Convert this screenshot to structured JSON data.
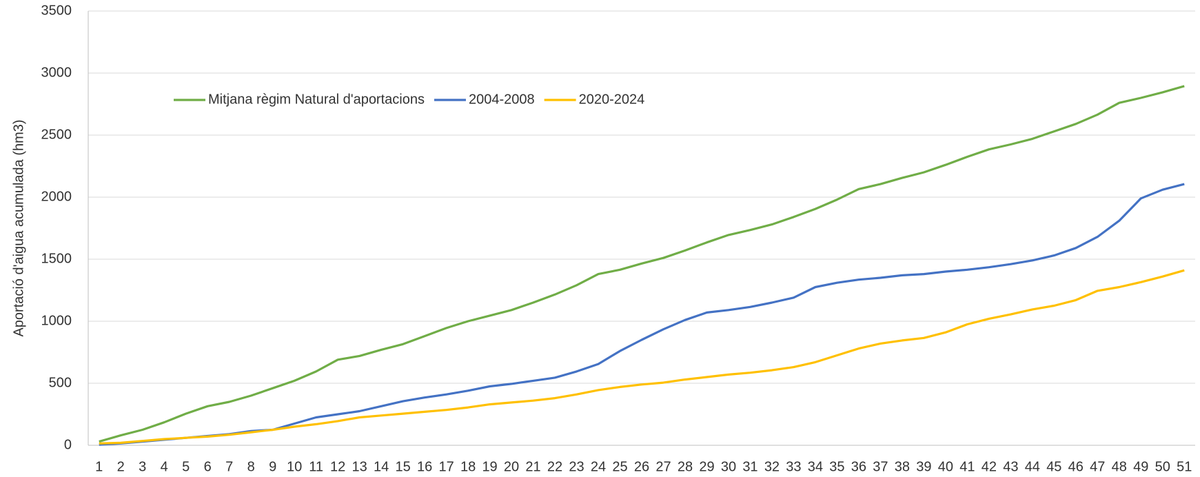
{
  "chart_data": {
    "type": "line",
    "y_label": "Aportació d'aigua acumulada (hm3)",
    "categories": [
      1,
      2,
      3,
      4,
      5,
      6,
      7,
      8,
      9,
      10,
      11,
      12,
      13,
      14,
      15,
      16,
      17,
      18,
      19,
      20,
      21,
      22,
      23,
      24,
      25,
      26,
      27,
      28,
      29,
      30,
      31,
      32,
      33,
      34,
      35,
      36,
      37,
      38,
      39,
      40,
      41,
      42,
      43,
      44,
      45,
      46,
      47,
      48,
      49,
      50,
      51
    ],
    "series": [
      {
        "name": "Mitjana règim Natural d'aportacions",
        "color": "#70ad47",
        "values": [
          30,
          80,
          125,
          185,
          255,
          315,
          350,
          400,
          460,
          520,
          595,
          690,
          720,
          770,
          815,
          880,
          945,
          1000,
          1045,
          1090,
          1150,
          1215,
          1290,
          1380,
          1415,
          1465,
          1510,
          1570,
          1635,
          1695,
          1735,
          1780,
          1840,
          1905,
          1980,
          2065,
          2105,
          2155,
          2200,
          2260,
          2325,
          2385,
          2425,
          2470,
          2530,
          2590,
          2665,
          2760,
          2800,
          2845,
          2895
        ]
      },
      {
        "name": "2004-2008",
        "color": "#4472c4",
        "values": [
          5,
          15,
          30,
          45,
          60,
          75,
          90,
          115,
          125,
          175,
          225,
          250,
          275,
          315,
          355,
          385,
          410,
          440,
          475,
          495,
          520,
          545,
          595,
          655,
          760,
          850,
          935,
          1010,
          1070,
          1090,
          1115,
          1150,
          1190,
          1275,
          1310,
          1335,
          1350,
          1370,
          1380,
          1400,
          1415,
          1435,
          1460,
          1490,
          1530,
          1590,
          1680,
          1810,
          1990,
          2060,
          2105
        ]
      },
      {
        "name": "2020-2024",
        "color": "#ffc000",
        "values": [
          15,
          20,
          35,
          50,
          60,
          70,
          85,
          105,
          125,
          150,
          170,
          195,
          225,
          240,
          255,
          270,
          285,
          305,
          330,
          345,
          360,
          380,
          410,
          445,
          470,
          490,
          505,
          530,
          550,
          570,
          585,
          605,
          630,
          670,
          725,
          780,
          820,
          845,
          865,
          910,
          975,
          1020,
          1055,
          1095,
          1125,
          1170,
          1245,
          1275,
          1315,
          1360,
          1410
        ]
      }
    ],
    "ylim": [
      0,
      3500
    ],
    "yticks": [
      0,
      500,
      1000,
      1500,
      2000,
      2500,
      3000,
      3500
    ],
    "grid": true,
    "legend": "top-left"
  }
}
